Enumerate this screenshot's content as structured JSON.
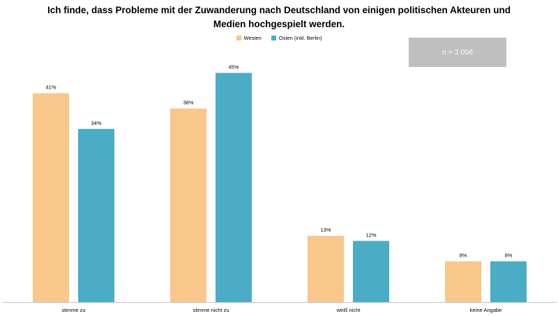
{
  "title_line1": "Ich finde, dass Probleme mit der Zuwanderung nach Deutschland von einigen politischen Akteuren und",
  "title_line2": "Medien hochgespielt werden.",
  "sample_note": "n = 2.056",
  "chart_data": {
    "type": "bar",
    "categories": [
      "stimme zu",
      "stimme nicht zu",
      "weiß nicht",
      "keine Angabe"
    ],
    "series": [
      {
        "name": "Westen",
        "color": "#f9c789",
        "values": [
          41,
          38,
          13,
          8
        ],
        "labels": [
          "41%",
          "38%",
          "13%",
          "8%"
        ]
      },
      {
        "name": "Osten (inkl. Berlin)",
        "color": "#4bacc6",
        "values": [
          34,
          45,
          12,
          8
        ],
        "labels": [
          "34%",
          "45%",
          "12%",
          "8%"
        ]
      }
    ],
    "ylim": [
      0,
      100
    ],
    "grid": false,
    "legend": "top-center"
  }
}
